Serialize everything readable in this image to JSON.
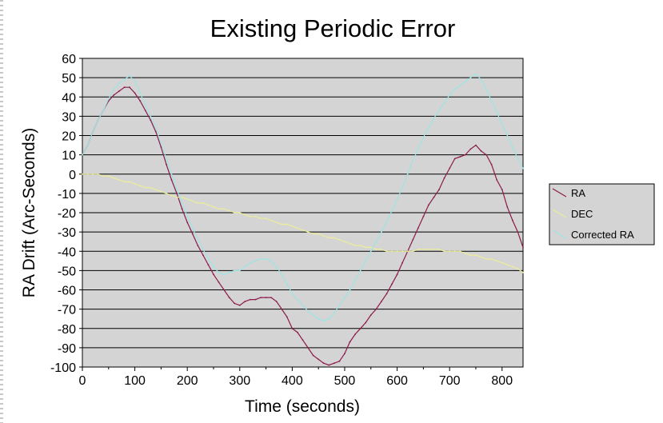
{
  "chart_data": {
    "type": "line",
    "title": "Existing Periodic Error",
    "xlabel": "Time (seconds)",
    "ylabel": "RA Drift (Arc-Seconds)",
    "xlim": [
      0,
      840
    ],
    "ylim": [
      -100,
      60
    ],
    "xticks": [
      0,
      100,
      200,
      300,
      400,
      500,
      600,
      700,
      800
    ],
    "yticks": [
      60,
      50,
      40,
      30,
      20,
      10,
      0,
      -10,
      -20,
      -30,
      -40,
      -50,
      -60,
      -70,
      -80,
      -90,
      -100
    ],
    "grid": "horizontal",
    "legend_position": "right",
    "background": "#d4d4d4",
    "series": [
      {
        "name": "RA",
        "color": "#8b1a4a",
        "x": [
          0,
          10,
          20,
          30,
          40,
          50,
          60,
          70,
          80,
          90,
          100,
          110,
          120,
          130,
          140,
          150,
          160,
          170,
          180,
          190,
          200,
          210,
          220,
          230,
          240,
          250,
          260,
          270,
          280,
          290,
          300,
          310,
          320,
          330,
          340,
          350,
          360,
          370,
          380,
          390,
          400,
          410,
          420,
          430,
          440,
          450,
          460,
          470,
          480,
          490,
          500,
          510,
          520,
          530,
          540,
          550,
          560,
          570,
          580,
          590,
          600,
          610,
          620,
          630,
          640,
          650,
          660,
          670,
          680,
          690,
          700,
          710,
          720,
          730,
          740,
          750,
          760,
          770,
          780,
          790,
          800,
          810,
          820,
          830,
          840
        ],
        "y": [
          10,
          15,
          22,
          28,
          33,
          38,
          41,
          43,
          45,
          45,
          42,
          38,
          33,
          28,
          22,
          14,
          5,
          -3,
          -10,
          -18,
          -25,
          -31,
          -37,
          -42,
          -47,
          -52,
          -56,
          -60,
          -64,
          -67,
          -68,
          -66,
          -65,
          -65,
          -64,
          -64,
          -64,
          -66,
          -70,
          -74,
          -80,
          -82,
          -86,
          -90,
          -94,
          -96,
          -98,
          -99,
          -98,
          -97,
          -93,
          -87,
          -83,
          -80,
          -77,
          -73,
          -70,
          -66,
          -62,
          -57,
          -52,
          -46,
          -40,
          -34,
          -28,
          -22,
          -16,
          -12,
          -8,
          -2,
          3,
          8,
          9,
          10,
          13,
          15,
          12,
          10,
          5,
          -3,
          -8,
          -17,
          -24,
          -30,
          -38
        ]
      },
      {
        "name": "DEC",
        "color": "#ecec9a",
        "x": [
          0,
          10,
          20,
          30,
          40,
          50,
          60,
          70,
          80,
          90,
          100,
          110,
          120,
          130,
          140,
          150,
          160,
          170,
          180,
          190,
          200,
          210,
          220,
          230,
          240,
          250,
          260,
          270,
          280,
          290,
          300,
          310,
          320,
          330,
          340,
          350,
          360,
          370,
          380,
          390,
          400,
          410,
          420,
          430,
          440,
          450,
          460,
          470,
          480,
          490,
          500,
          510,
          520,
          530,
          540,
          550,
          560,
          570,
          580,
          590,
          600,
          610,
          620,
          630,
          640,
          650,
          660,
          670,
          680,
          690,
          700,
          710,
          720,
          730,
          740,
          750,
          760,
          770,
          780,
          790,
          800,
          810,
          820,
          830,
          840
        ],
        "y": [
          0,
          0,
          0,
          0,
          -1,
          -1,
          -2,
          -3,
          -4,
          -4,
          -5,
          -6,
          -7,
          -7,
          -8,
          -9,
          -10,
          -11,
          -12,
          -12,
          -13,
          -14,
          -15,
          -15,
          -16,
          -17,
          -18,
          -18,
          -19,
          -20,
          -20,
          -21,
          -22,
          -22,
          -23,
          -23,
          -24,
          -25,
          -26,
          -26,
          -27,
          -28,
          -29,
          -30,
          -31,
          -31,
          -32,
          -33,
          -33,
          -34,
          -35,
          -36,
          -37,
          -37,
          -38,
          -38,
          -39,
          -39,
          -40,
          -40,
          -40,
          -40,
          -40,
          -40,
          -39,
          -39,
          -39,
          -39,
          -39,
          -40,
          -40,
          -40,
          -40,
          -41,
          -42,
          -42,
          -43,
          -44,
          -44,
          -45,
          -46,
          -47,
          -48,
          -49,
          -51
        ]
      },
      {
        "name": "Corrected RA",
        "color": "#9ee4e4",
        "x": [
          0,
          10,
          20,
          30,
          40,
          50,
          60,
          70,
          80,
          90,
          100,
          110,
          120,
          130,
          140,
          150,
          160,
          170,
          180,
          190,
          200,
          210,
          220,
          230,
          240,
          250,
          260,
          270,
          280,
          290,
          300,
          310,
          320,
          330,
          340,
          350,
          360,
          370,
          380,
          390,
          400,
          410,
          420,
          430,
          440,
          450,
          460,
          470,
          480,
          490,
          500,
          510,
          520,
          530,
          540,
          550,
          560,
          570,
          580,
          590,
          600,
          610,
          620,
          630,
          640,
          650,
          660,
          670,
          680,
          690,
          700,
          710,
          720,
          730,
          740,
          750,
          760,
          770,
          780,
          790,
          800,
          810,
          820,
          830,
          840
        ],
        "y": [
          10,
          15,
          22,
          28,
          33,
          39,
          44,
          47,
          49,
          51,
          48,
          42,
          36,
          30,
          24,
          16,
          8,
          0,
          -8,
          -15,
          -22,
          -28,
          -34,
          -39,
          -44,
          -48,
          -51,
          -52,
          -51,
          -50,
          -50,
          -48,
          -46,
          -45,
          -44,
          -44,
          -45,
          -48,
          -52,
          -57,
          -62,
          -65,
          -68,
          -71,
          -73,
          -75,
          -76,
          -75,
          -72,
          -68,
          -64,
          -60,
          -55,
          -50,
          -45,
          -40,
          -35,
          -30,
          -25,
          -19,
          -13,
          -7,
          0,
          7,
          13,
          19,
          24,
          29,
          33,
          37,
          41,
          44,
          46,
          48,
          50,
          52,
          49,
          44,
          38,
          32,
          26,
          20,
          14,
          8,
          3
        ]
      }
    ]
  }
}
